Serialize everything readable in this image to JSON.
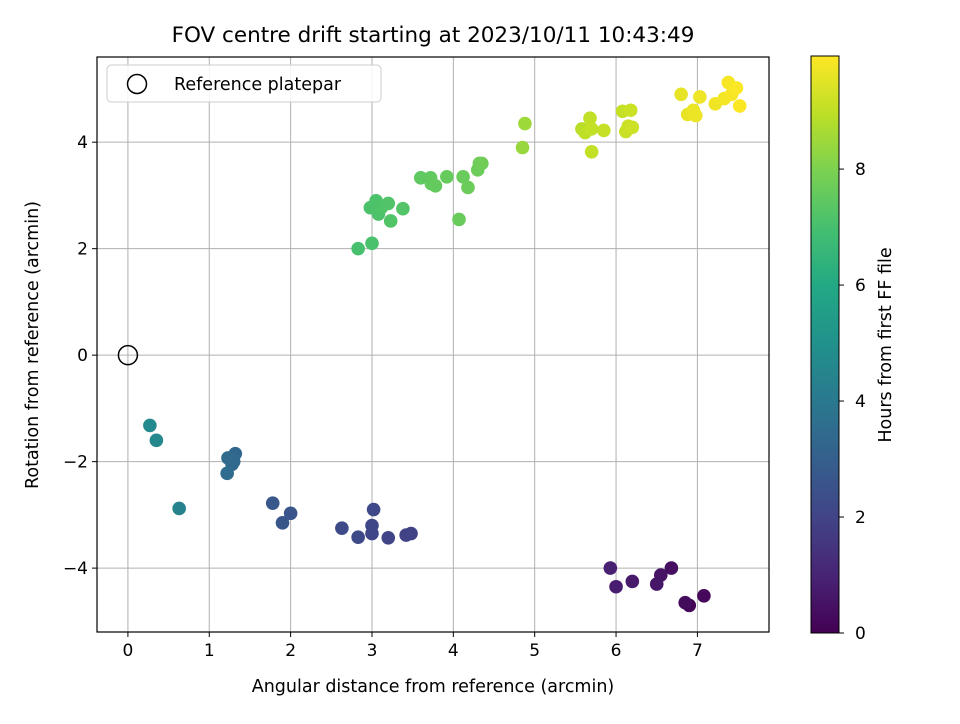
{
  "chart_data": {
    "type": "scatter",
    "title": "FOV centre drift starting at 2023/10/11 10:43:49",
    "xlabel": "Angular distance from reference (arcmin)",
    "ylabel": "Rotation from reference (arcmin)",
    "xlim": [
      -0.38,
      7.88
    ],
    "ylim": [
      -5.2,
      5.6
    ],
    "xticks": [
      0,
      1,
      2,
      3,
      4,
      5,
      6,
      7
    ],
    "yticks": [
      -4,
      -2,
      0,
      2,
      4
    ],
    "grid": true,
    "legend": {
      "placement": "top-left",
      "entries": [
        "Reference platepar"
      ]
    },
    "reference_point": {
      "x": 0,
      "y": 0
    },
    "colorbar": {
      "label": "Hours from first FF file",
      "range": [
        0,
        9.95
      ],
      "ticks": [
        0,
        2,
        4,
        6,
        8
      ],
      "colormap": "viridis",
      "colormap_stops": [
        "#440154",
        "#482475",
        "#414487",
        "#355f8d",
        "#2a788e",
        "#21918c",
        "#22a884",
        "#44bf70",
        "#7ad151",
        "#bddf26",
        "#fde725"
      ]
    },
    "points": [
      {
        "x": 6.9,
        "y": -4.7,
        "h": 0.1
      },
      {
        "x": 7.08,
        "y": -4.52,
        "h": 0.2
      },
      {
        "x": 6.85,
        "y": -4.65,
        "h": 0.3
      },
      {
        "x": 6.68,
        "y": -4.0,
        "h": 0.4
      },
      {
        "x": 6.55,
        "y": -4.13,
        "h": 0.5
      },
      {
        "x": 6.5,
        "y": -4.3,
        "h": 0.6
      },
      {
        "x": 6.2,
        "y": -4.25,
        "h": 0.7
      },
      {
        "x": 6.0,
        "y": -4.35,
        "h": 0.8
      },
      {
        "x": 5.93,
        "y": -4.0,
        "h": 0.9
      },
      {
        "x": 3.48,
        "y": -3.35,
        "h": 1.9
      },
      {
        "x": 3.42,
        "y": -3.38,
        "h": 1.95
      },
      {
        "x": 3.2,
        "y": -3.43,
        "h": 2.0
      },
      {
        "x": 3.0,
        "y": -3.35,
        "h": 2.05
      },
      {
        "x": 3.0,
        "y": -3.2,
        "h": 2.1
      },
      {
        "x": 3.02,
        "y": -2.9,
        "h": 2.15
      },
      {
        "x": 2.83,
        "y": -3.42,
        "h": 2.2
      },
      {
        "x": 2.63,
        "y": -3.25,
        "h": 2.25
      },
      {
        "x": 2.0,
        "y": -2.97,
        "h": 2.6
      },
      {
        "x": 1.9,
        "y": -3.15,
        "h": 2.65
      },
      {
        "x": 1.78,
        "y": -2.78,
        "h": 2.7
      },
      {
        "x": 1.32,
        "y": -1.85,
        "h": 3.3
      },
      {
        "x": 1.3,
        "y": -2.0,
        "h": 3.35
      },
      {
        "x": 1.28,
        "y": -2.05,
        "h": 3.4
      },
      {
        "x": 1.23,
        "y": -1.93,
        "h": 3.45
      },
      {
        "x": 1.22,
        "y": -2.22,
        "h": 3.5
      },
      {
        "x": 0.63,
        "y": -2.88,
        "h": 4.4
      },
      {
        "x": 0.35,
        "y": -1.6,
        "h": 4.6
      },
      {
        "x": 0.27,
        "y": -1.32,
        "h": 4.7
      },
      {
        "x": 2.83,
        "y": 2.0,
        "h": 7.0
      },
      {
        "x": 3.0,
        "y": 2.1,
        "h": 7.05
      },
      {
        "x": 2.98,
        "y": 2.77,
        "h": 7.1
      },
      {
        "x": 3.05,
        "y": 2.9,
        "h": 7.12
      },
      {
        "x": 3.08,
        "y": 2.65,
        "h": 7.15
      },
      {
        "x": 3.12,
        "y": 2.78,
        "h": 7.18
      },
      {
        "x": 3.2,
        "y": 2.85,
        "h": 7.2
      },
      {
        "x": 3.23,
        "y": 2.52,
        "h": 7.22
      },
      {
        "x": 3.38,
        "y": 2.75,
        "h": 7.25
      },
      {
        "x": 3.6,
        "y": 3.33,
        "h": 7.45
      },
      {
        "x": 3.72,
        "y": 3.33,
        "h": 7.5
      },
      {
        "x": 3.73,
        "y": 3.22,
        "h": 7.52
      },
      {
        "x": 3.78,
        "y": 3.18,
        "h": 7.55
      },
      {
        "x": 3.92,
        "y": 3.35,
        "h": 7.6
      },
      {
        "x": 4.07,
        "y": 2.55,
        "h": 7.62
      },
      {
        "x": 4.12,
        "y": 3.35,
        "h": 7.65
      },
      {
        "x": 4.18,
        "y": 3.15,
        "h": 7.68
      },
      {
        "x": 4.3,
        "y": 3.48,
        "h": 7.7
      },
      {
        "x": 4.32,
        "y": 3.6,
        "h": 7.72
      },
      {
        "x": 4.35,
        "y": 3.6,
        "h": 7.75
      },
      {
        "x": 4.85,
        "y": 3.9,
        "h": 8.4
      },
      {
        "x": 4.88,
        "y": 4.35,
        "h": 8.5
      },
      {
        "x": 5.58,
        "y": 4.25,
        "h": 8.9
      },
      {
        "x": 5.62,
        "y": 4.18,
        "h": 8.95
      },
      {
        "x": 5.68,
        "y": 4.45,
        "h": 9.0
      },
      {
        "x": 5.7,
        "y": 4.25,
        "h": 9.02
      },
      {
        "x": 5.7,
        "y": 3.82,
        "h": 9.05
      },
      {
        "x": 5.85,
        "y": 4.22,
        "h": 9.08
      },
      {
        "x": 6.08,
        "y": 4.58,
        "h": 9.1
      },
      {
        "x": 6.12,
        "y": 4.2,
        "h": 9.12
      },
      {
        "x": 6.15,
        "y": 4.3,
        "h": 9.15
      },
      {
        "x": 6.18,
        "y": 4.6,
        "h": 9.18
      },
      {
        "x": 6.2,
        "y": 4.28,
        "h": 9.2
      },
      {
        "x": 6.8,
        "y": 4.9,
        "h": 9.6
      },
      {
        "x": 6.88,
        "y": 4.52,
        "h": 9.62
      },
      {
        "x": 6.95,
        "y": 4.6,
        "h": 9.65
      },
      {
        "x": 6.98,
        "y": 4.5,
        "h": 9.68
      },
      {
        "x": 7.03,
        "y": 4.85,
        "h": 9.7
      },
      {
        "x": 7.22,
        "y": 4.72,
        "h": 9.75
      },
      {
        "x": 7.33,
        "y": 4.82,
        "h": 9.8
      },
      {
        "x": 7.38,
        "y": 5.12,
        "h": 9.85
      },
      {
        "x": 7.42,
        "y": 4.9,
        "h": 9.88
      },
      {
        "x": 7.48,
        "y": 5.02,
        "h": 9.9
      },
      {
        "x": 7.52,
        "y": 4.68,
        "h": 9.93
      }
    ]
  }
}
